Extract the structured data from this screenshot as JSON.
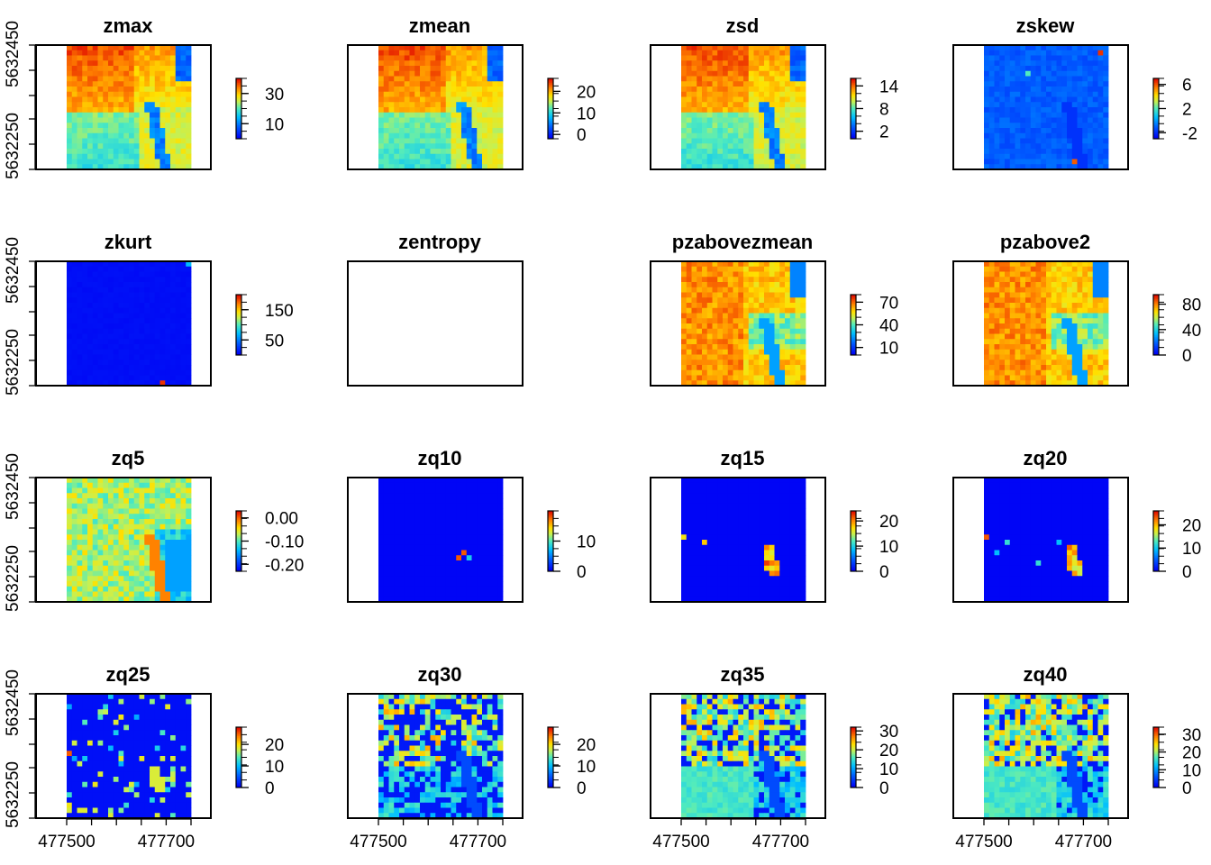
{
  "chart_data": {
    "type": "heatmap",
    "x_axis_ticks": [
      "477500",
      "477700"
    ],
    "y_axis_ticks": [
      "5632250",
      "5632450"
    ],
    "panels": [
      {
        "title": "zmax",
        "legend_ticks": [
          "30",
          "10"
        ],
        "legend_values": [
          30,
          10
        ],
        "range": [
          0,
          40
        ],
        "pattern": "height"
      },
      {
        "title": "zmean",
        "legend_ticks": [
          "20",
          "10",
          "0"
        ],
        "legend_values": [
          20,
          10,
          0
        ],
        "range": [
          -2,
          26
        ],
        "pattern": "height"
      },
      {
        "title": "zsd",
        "legend_ticks": [
          "14",
          "8",
          "2"
        ],
        "legend_values": [
          14,
          8,
          2
        ],
        "range": [
          0,
          16
        ],
        "pattern": "height"
      },
      {
        "title": "zskew",
        "legend_ticks": [
          "6",
          "2",
          "-2"
        ],
        "legend_values": [
          6,
          2,
          -2
        ],
        "range": [
          -3,
          7
        ],
        "pattern": "skew"
      },
      {
        "title": "zkurt",
        "legend_ticks": [
          "150",
          "50"
        ],
        "legend_values": [
          150,
          50
        ],
        "range": [
          0,
          200
        ],
        "pattern": "kurt"
      },
      {
        "title": "zentropy",
        "legend_ticks": [],
        "legend_values": [],
        "range": [
          0,
          1
        ],
        "pattern": "empty"
      },
      {
        "title": "pzabovezmean",
        "legend_ticks": [
          "70",
          "40",
          "10"
        ],
        "legend_values": [
          70,
          40,
          10
        ],
        "range": [
          0,
          80
        ],
        "pattern": "pabove"
      },
      {
        "title": "pzabove2",
        "legend_ticks": [
          "80",
          "40",
          "0"
        ],
        "legend_values": [
          80,
          40,
          0
        ],
        "range": [
          0,
          95
        ],
        "pattern": "pabove"
      },
      {
        "title": "zq5",
        "legend_ticks": [
          "0.00",
          "-0.10",
          "-0.20"
        ],
        "legend_values": [
          0.0,
          -0.1,
          -0.2
        ],
        "range": [
          -0.23,
          0.03
        ],
        "pattern": "zq5"
      },
      {
        "title": "zq10",
        "legend_ticks": [
          "10",
          "0"
        ],
        "legend_values": [
          10,
          0
        ],
        "range": [
          0,
          20
        ],
        "pattern": "sparse1"
      },
      {
        "title": "zq15",
        "legend_ticks": [
          "20",
          "10",
          "0"
        ],
        "legend_values": [
          20,
          10,
          0
        ],
        "range": [
          0,
          24
        ],
        "pattern": "sparse2"
      },
      {
        "title": "zq20",
        "legend_ticks": [
          "20",
          "10",
          "0"
        ],
        "legend_values": [
          20,
          10,
          0
        ],
        "range": [
          0,
          26
        ],
        "pattern": "sparse3"
      },
      {
        "title": "zq25",
        "legend_ticks": [
          "20",
          "10",
          "0"
        ],
        "legend_values": [
          20,
          10,
          0
        ],
        "range": [
          0,
          28
        ],
        "pattern": "mixed1"
      },
      {
        "title": "zq30",
        "legend_ticks": [
          "20",
          "10",
          "0"
        ],
        "legend_values": [
          20,
          10,
          0
        ],
        "range": [
          0,
          28
        ],
        "pattern": "mixed2"
      },
      {
        "title": "zq35",
        "legend_ticks": [
          "30",
          "20",
          "10",
          "0"
        ],
        "legend_values": [
          30,
          20,
          10,
          0
        ],
        "range": [
          0,
          32
        ],
        "pattern": "mixed3"
      },
      {
        "title": "zq40",
        "legend_ticks": [
          "30",
          "20",
          "10",
          "0"
        ],
        "legend_values": [
          30,
          20,
          10,
          0
        ],
        "range": [
          0,
          34
        ],
        "pattern": "mixed4"
      }
    ]
  }
}
